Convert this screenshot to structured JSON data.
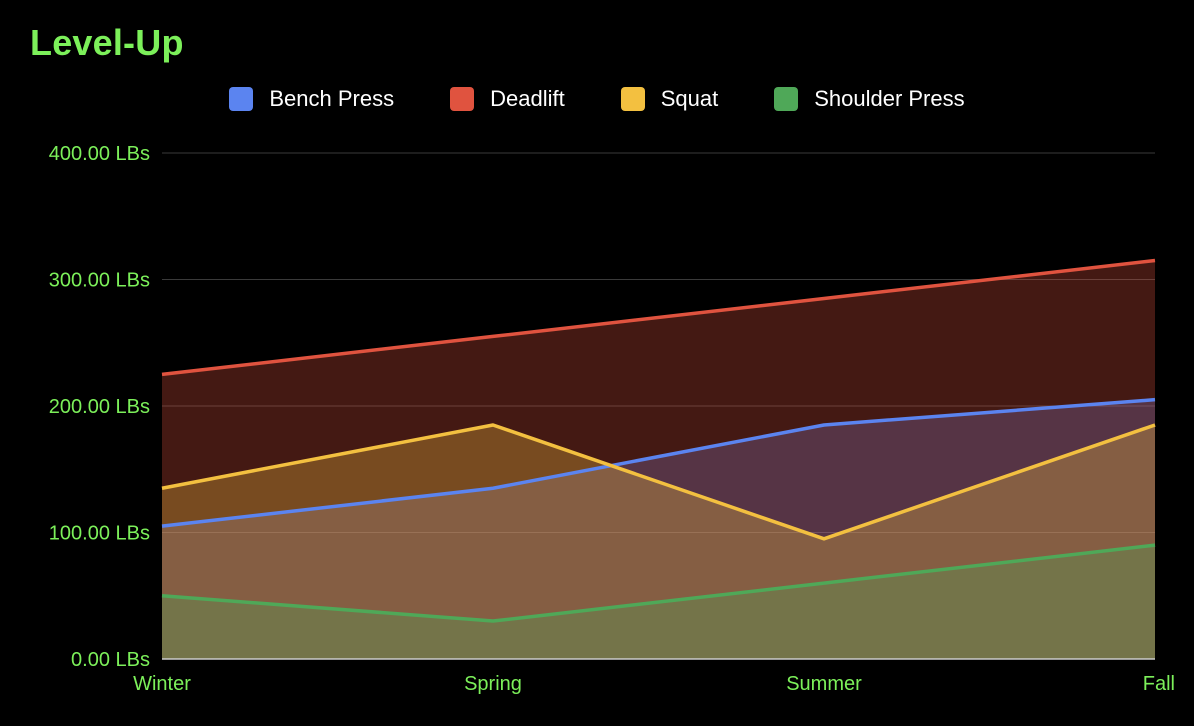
{
  "chart_data": {
    "type": "area",
    "title": "Level-Up",
    "xlabel": "",
    "ylabel": "",
    "categories": [
      "Winter",
      "Spring",
      "Summer",
      "Fall"
    ],
    "ylim": [
      0,
      400
    ],
    "yticks": [
      0,
      100,
      200,
      300,
      400
    ],
    "ytick_labels": [
      "0.00 LBs",
      "100.00 LBs",
      "200.00 LBs",
      "300.00 LBs",
      "400.00 LBs"
    ],
    "grid": true,
    "legend_position": "top-center",
    "series": [
      {
        "name": "Bench Press",
        "values": [
          105,
          135,
          185,
          205
        ],
        "color": "#5b84f0"
      },
      {
        "name": "Deadlift",
        "values": [
          225,
          255,
          285,
          315
        ],
        "color": "#e0533f"
      },
      {
        "name": "Squat",
        "values": [
          135,
          185,
          95,
          185
        ],
        "color": "#f3c040"
      },
      {
        "name": "Shoulder Press",
        "values": [
          50,
          30,
          60,
          90
        ],
        "color": "#4fa858"
      }
    ]
  },
  "colors": {
    "background": "#000000",
    "title": "#7cf05a",
    "tick_label": "#7cf05a",
    "gridline": "#3a3a3a",
    "axis": "#cccccc",
    "legend_text": "#ffffff"
  }
}
